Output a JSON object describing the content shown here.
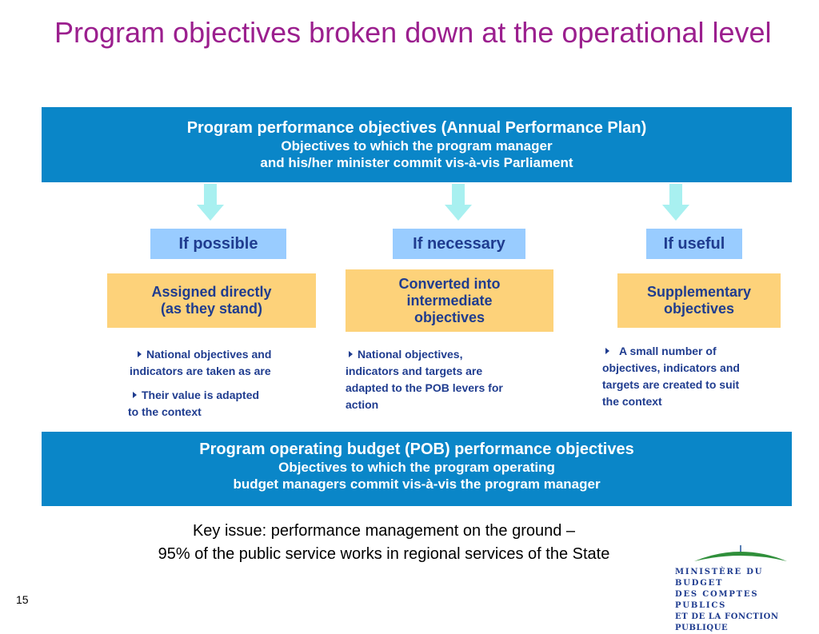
{
  "title": "Program objectives broken down at the operational level",
  "top_box": {
    "line1": "Program performance objectives (Annual Performance Plan)",
    "line2": "Objectives to which the program manager",
    "line3": "and his/her minister commit vis-à-vis Parliament"
  },
  "conditions": [
    "If possible",
    "If necessary",
    "If useful"
  ],
  "outcomes": [
    {
      "line1": "Assigned directly",
      "line2": "(as they stand)"
    },
    {
      "line1": "Converted into",
      "line2": "intermediate",
      "line3": "objectives"
    },
    {
      "line1": "Supplementary",
      "line2": "objectives"
    }
  ],
  "notes": {
    "left": [
      {
        "line1": "National objectives and",
        "line2": "indicators are taken as are"
      },
      {
        "line1": "Their value is adapted",
        "line2": "to the context"
      }
    ],
    "middle": {
      "line1": "National objectives,",
      "line2": "indicators and targets are",
      "line3": "adapted to the POB levers for",
      "line4": "action"
    },
    "right": {
      "line1": "A small number of",
      "line2": "objectives, indicators and",
      "line3": "targets are created to suit",
      "line4": "the context"
    }
  },
  "bottom_box": {
    "line1": "Program operating budget (POB) performance objectives",
    "line2": "Objectives to which the program operating",
    "line3": "budget managers commit vis-à-vis the program manager"
  },
  "key_issue": {
    "line1": "Key issue: performance management on the ground –",
    "line2": "95% of the public service works in regional services of the State"
  },
  "page_number": "15",
  "logo": {
    "line1": "MINISTÈRE DU BUDGET",
    "line2": "DES COMPTES PUBLICS",
    "line3": "ET DE LA FONCTION PUBLIQUE"
  },
  "colors": {
    "title": "#9b1f8e",
    "blue_box": "#0a86c8",
    "condition_box": "#99ccff",
    "outcome_box": "#fdd27a",
    "arrow": "#a8f0f0",
    "text_navy": "#1f3c8f"
  }
}
